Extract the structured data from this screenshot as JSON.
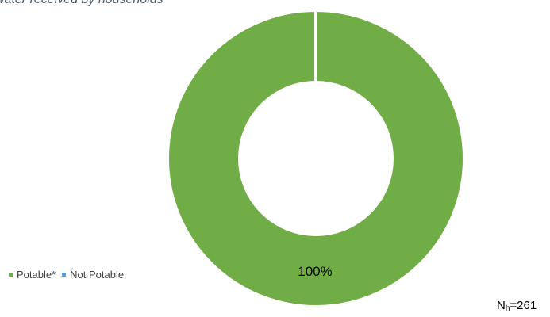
{
  "chart_data": {
    "type": "pie",
    "title": "water received by households",
    "categories": [
      "Potable*",
      "Not Potable"
    ],
    "values": [
      100,
      0
    ],
    "colors": [
      "#70ad47",
      "#5b9bd5"
    ],
    "data_labels": [
      "100%"
    ],
    "legend_placement": "bottom-left",
    "hole": "donut"
  },
  "note": {
    "n_main": "N",
    "n_sub": "h",
    "n_value": "=261"
  }
}
